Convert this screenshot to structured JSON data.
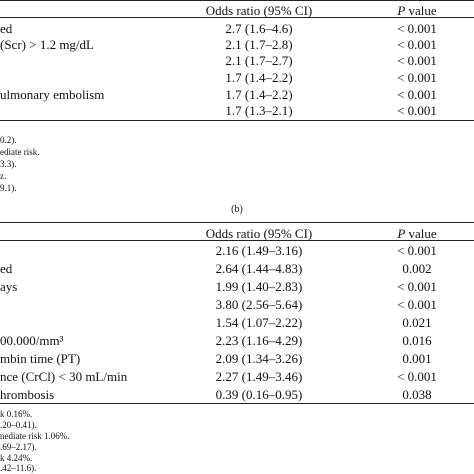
{
  "table_a": {
    "header": {
      "or_label": "Odds ratio (95% CI)",
      "p_label_italic": "P",
      "p_label_rest": " value"
    },
    "rows": [
      {
        "label": "ed",
        "or": "2.7 (1.6–4.6)",
        "p": "< 0.001"
      },
      {
        "label": "(Scr) > 1.2 mg/dL",
        "or": "2.1 (1.7–2.8)",
        "p": "< 0.001"
      },
      {
        "label": "",
        "or": "2.1 (1.7–2.7)",
        "p": "< 0.001"
      },
      {
        "label": "",
        "or": "1.7 (1.4–2.2)",
        "p": "< 0.001"
      },
      {
        "label": "ulmonary embolism",
        "or": "1.7 (1.4–2.2)",
        "p": "< 0.001"
      },
      {
        "label": "",
        "or": "1.7 (1.3–2.1)",
        "p": "< 0.001"
      }
    ],
    "notes": [
      "0.2).",
      "ediate risk.",
      "3.3).",
      "z.",
      "9.1)."
    ]
  },
  "caption_b": "(b)",
  "table_b": {
    "header": {
      "or_label": "Odds ratio (95% CI)",
      "p_label_italic": "P",
      "p_label_rest": " value"
    },
    "rows": [
      {
        "label": "",
        "or": "2.16 (1.49–3.16)",
        "p": "< 0.001"
      },
      {
        "label": "ed",
        "or": "2.64 (1.44–4.83)",
        "p": "0.002"
      },
      {
        "label": "ays",
        "or": "1.99 (1.40–2.83)",
        "p": "< 0.001"
      },
      {
        "label": "",
        "or": "3.80 (2.56–5.64)",
        "p": "< 0.001"
      },
      {
        "label": "",
        "or": "1.54 (1.07–2.22)",
        "p": "0.021"
      },
      {
        "label": "00.000/mm³",
        "or": "2.23 (1.16–4.29)",
        "p": "0.016"
      },
      {
        "label": "mbin time (PT)",
        "or": "2.09 (1.34–3.26)",
        "p": "0.001"
      },
      {
        "label": "nce (CrCl) < 30 mL/min",
        "or": "2.27 (1.49–3.46)",
        "p": "< 0.001"
      },
      {
        "label": "hrombosis",
        "or": "0.39 (0.16–0.95)",
        "p": "0.038"
      }
    ],
    "notes": [
      "k 0.16%.",
      ".20–0.41).",
      "nediate risk 1.06%.",
      ".69–2.17).",
      "k 4.24%.",
      ".42–11.6)."
    ]
  }
}
